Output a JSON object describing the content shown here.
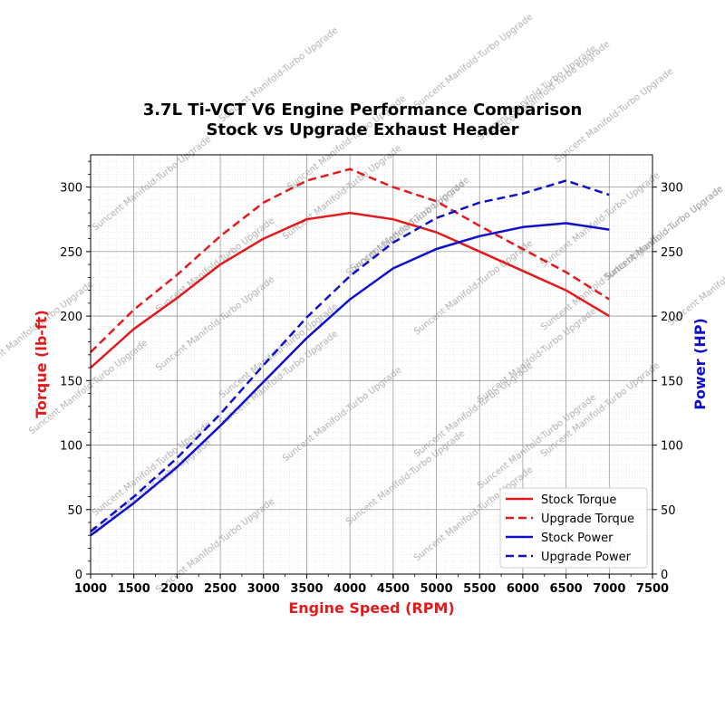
{
  "chart_data": {
    "type": "line",
    "title": "3.7L Ti-VCT V6 Engine Performance Comparison",
    "subtitle": "Stock vs Upgrade Exhaust Header",
    "xlabel": "Engine Speed (RPM)",
    "ylabel_left": "Torque (lb-ft)",
    "ylabel_right": "Power (HP)",
    "xlim": [
      1000,
      7500
    ],
    "ylim_left": [
      0,
      325
    ],
    "ylim_right": [
      0,
      325
    ],
    "x_ticks": [
      "1000",
      "1500",
      "2000",
      "2500",
      "3000",
      "3500",
      "4000",
      "4500",
      "5000",
      "5500",
      "6000",
      "6500",
      "7000",
      "7500"
    ],
    "y_ticks_left": [
      "0",
      "50",
      "100",
      "150",
      "200",
      "250",
      "300"
    ],
    "y_ticks_right": [
      "0",
      "50",
      "100",
      "150",
      "200",
      "250",
      "300"
    ],
    "grid": true,
    "legend_position": "lower-right",
    "watermark": "Suncent Manifold-Turbo Upgrade",
    "x": [
      1000,
      1500,
      2000,
      2500,
      3000,
      3500,
      4000,
      4500,
      5000,
      5500,
      6000,
      6500,
      7000
    ],
    "series": [
      {
        "name": "Stock Torque",
        "axis": "left",
        "color": "#e31a1c",
        "dash": false,
        "values": [
          160,
          190,
          214,
          240,
          260,
          275,
          280,
          275,
          265,
          250,
          235,
          220,
          200
        ]
      },
      {
        "name": "Upgrade Torque",
        "axis": "left",
        "color": "#e31a1c",
        "dash": true,
        "values": [
          172,
          205,
          232,
          262,
          288,
          305,
          314,
          300,
          289,
          270,
          252,
          234,
          213
        ]
      },
      {
        "name": "Stock Power",
        "axis": "right",
        "color": "#1010cc",
        "dash": false,
        "values": [
          30,
          55,
          83,
          115,
          149,
          183,
          213,
          237,
          252,
          262,
          269,
          272,
          267
        ]
      },
      {
        "name": "Upgrade Power",
        "axis": "right",
        "color": "#1010cc",
        "dash": true,
        "values": [
          33,
          60,
          90,
          124,
          162,
          199,
          231,
          257,
          276,
          288,
          295,
          305,
          294
        ]
      }
    ]
  }
}
